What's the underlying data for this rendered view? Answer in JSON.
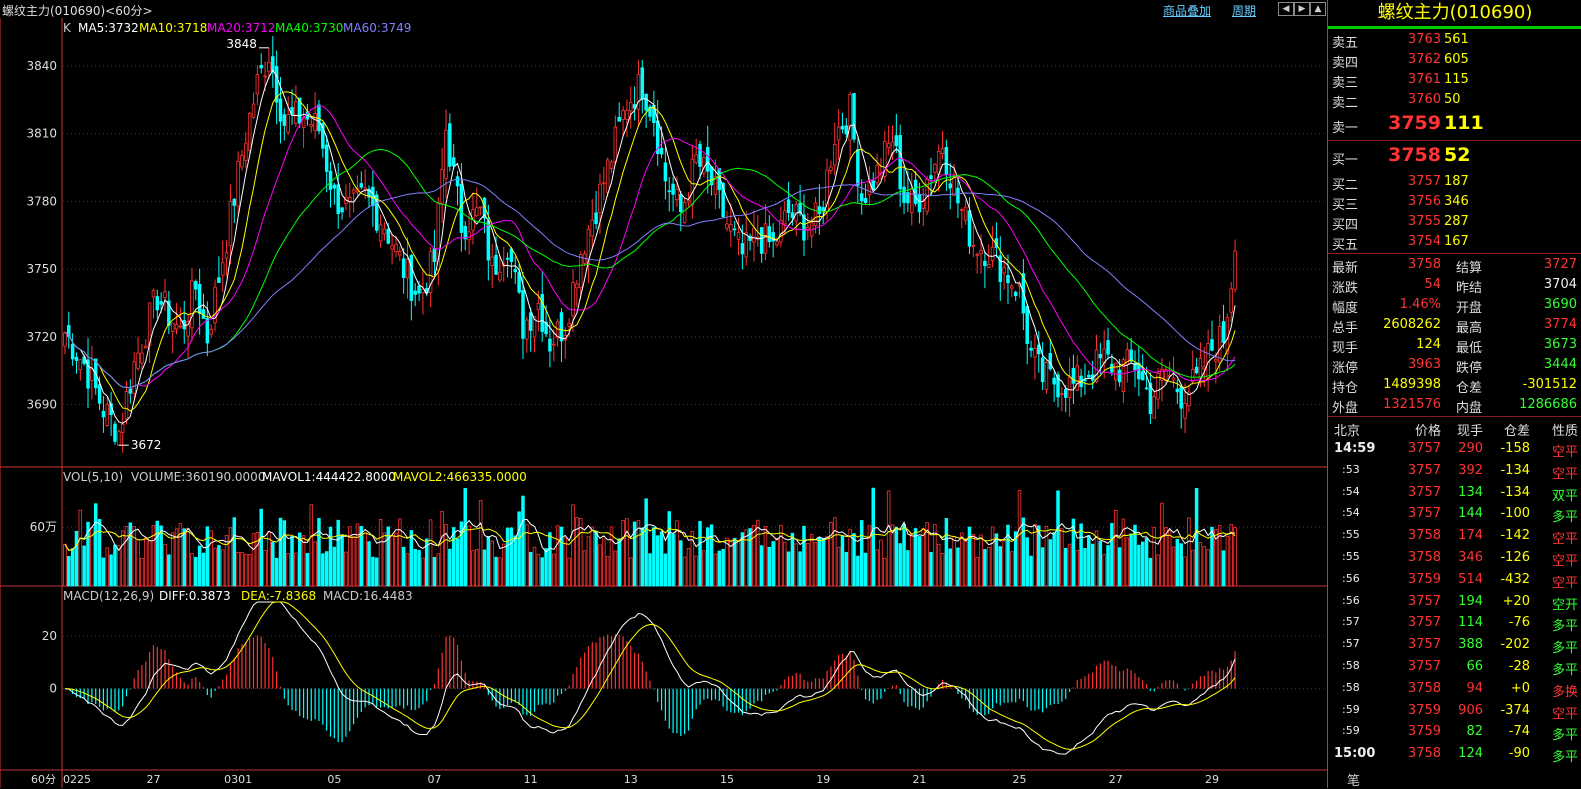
{
  "header": {
    "title": "螺纹主力(010690)<60分>",
    "overlay_link": "商品叠加",
    "cycle_link": "周期",
    "nav_icons": [
      "arrow-left-icon",
      "arrow-right-icon",
      "arrow-up-down-icon"
    ]
  },
  "legends": {
    "k_label": "K",
    "ma": [
      {
        "text": "MA5:3732",
        "color": "#ffffff"
      },
      {
        "text": "MA10:3718",
        "color": "#ffff00"
      },
      {
        "text": "MA20:3712",
        "color": "#ff00ff"
      },
      {
        "text": "MA40:3730",
        "color": "#00ff00"
      },
      {
        "text": "MA60:3749",
        "color": "#8080ff"
      }
    ],
    "vol": [
      {
        "text": "VOL(5,10)",
        "color": "#cccccc"
      },
      {
        "text": "VOLUME:360190.0000",
        "color": "#cccccc"
      },
      {
        "text": "MAVOL1:444422.8000",
        "color": "#ffffff"
      },
      {
        "text": "MAVOL2:466335.0000",
        "color": "#ffff00"
      }
    ],
    "macd": [
      {
        "text": "MACD(12,26,9)",
        "color": "#cccccc"
      },
      {
        "text": "DIFF:0.3873",
        "color": "#ffffff"
      },
      {
        "text": "DEA:-7.8368",
        "color": "#ffff00"
      },
      {
        "text": "MACD:16.4483",
        "color": "#cccccc"
      }
    ]
  },
  "chart_data": {
    "type": "candlestick",
    "price_axis": {
      "ticks": [
        3690,
        3720,
        3750,
        3780,
        3810,
        3840
      ],
      "range": [
        3665,
        3855
      ]
    },
    "volume_axis": {
      "ticks_label": "60万",
      "tick_value": 600000,
      "range": [
        0,
        1050000
      ]
    },
    "macd_axis": {
      "ticks": [
        0,
        20
      ],
      "range": [
        -31,
        33
      ]
    },
    "x_labels": [
      {
        "i": 0,
        "label": "0225"
      },
      {
        "i": 23,
        "label": "27"
      },
      {
        "i": 45,
        "label": "0301"
      },
      {
        "i": 70,
        "label": "05"
      },
      {
        "i": 96,
        "label": "07"
      },
      {
        "i": 121,
        "label": "11"
      },
      {
        "i": 147,
        "label": "13"
      },
      {
        "i": 172,
        "label": "15"
      },
      {
        "i": 197,
        "label": "19"
      },
      {
        "i": 222,
        "label": "21"
      },
      {
        "i": 248,
        "label": "25"
      },
      {
        "i": 273,
        "label": "27"
      },
      {
        "i": 298,
        "label": "29"
      }
    ],
    "annotations": [
      {
        "text": "3848",
        "price": 3848
      },
      {
        "text": "3672",
        "price": 3672
      }
    ],
    "anchors": [
      {
        "i": 0,
        "c": 3722
      },
      {
        "i": 5,
        "c": 3708
      },
      {
        "i": 10,
        "c": 3688
      },
      {
        "i": 14,
        "c": 3678
      },
      {
        "i": 18,
        "c": 3708
      },
      {
        "i": 24,
        "c": 3738
      },
      {
        "i": 30,
        "c": 3722
      },
      {
        "i": 34,
        "c": 3742
      },
      {
        "i": 37,
        "c": 3720
      },
      {
        "i": 42,
        "c": 3764
      },
      {
        "i": 47,
        "c": 3810
      },
      {
        "i": 50,
        "c": 3832
      },
      {
        "i": 53,
        "c": 3846
      },
      {
        "i": 57,
        "c": 3815
      },
      {
        "i": 62,
        "c": 3818
      },
      {
        "i": 66,
        "c": 3812
      },
      {
        "i": 70,
        "c": 3782
      },
      {
        "i": 74,
        "c": 3776
      },
      {
        "i": 78,
        "c": 3782
      },
      {
        "i": 83,
        "c": 3770
      },
      {
        "i": 88,
        "c": 3750
      },
      {
        "i": 92,
        "c": 3738
      },
      {
        "i": 96,
        "c": 3754
      },
      {
        "i": 99,
        "c": 3812
      },
      {
        "i": 103,
        "c": 3770
      },
      {
        "i": 108,
        "c": 3775
      },
      {
        "i": 111,
        "c": 3750
      },
      {
        "i": 115,
        "c": 3762
      },
      {
        "i": 119,
        "c": 3725
      },
      {
        "i": 123,
        "c": 3735
      },
      {
        "i": 126,
        "c": 3718
      },
      {
        "i": 130,
        "c": 3726
      },
      {
        "i": 134,
        "c": 3758
      },
      {
        "i": 138,
        "c": 3778
      },
      {
        "i": 142,
        "c": 3800
      },
      {
        "i": 146,
        "c": 3824
      },
      {
        "i": 150,
        "c": 3832
      },
      {
        "i": 153,
        "c": 3818
      },
      {
        "i": 156,
        "c": 3790
      },
      {
        "i": 160,
        "c": 3775
      },
      {
        "i": 164,
        "c": 3798
      },
      {
        "i": 168,
        "c": 3788
      },
      {
        "i": 172,
        "c": 3770
      },
      {
        "i": 176,
        "c": 3756
      },
      {
        "i": 180,
        "c": 3765
      },
      {
        "i": 184,
        "c": 3760
      },
      {
        "i": 188,
        "c": 3775
      },
      {
        "i": 192,
        "c": 3770
      },
      {
        "i": 196,
        "c": 3772
      },
      {
        "i": 200,
        "c": 3810
      },
      {
        "i": 204,
        "c": 3820
      },
      {
        "i": 207,
        "c": 3782
      },
      {
        "i": 211,
        "c": 3792
      },
      {
        "i": 215,
        "c": 3808
      },
      {
        "i": 218,
        "c": 3782
      },
      {
        "i": 221,
        "c": 3778
      },
      {
        "i": 224,
        "c": 3790
      },
      {
        "i": 228,
        "c": 3806
      },
      {
        "i": 232,
        "c": 3780
      },
      {
        "i": 236,
        "c": 3762
      },
      {
        "i": 240,
        "c": 3758
      },
      {
        "i": 244,
        "c": 3750
      },
      {
        "i": 248,
        "c": 3740
      },
      {
        "i": 251,
        "c": 3712
      },
      {
        "i": 254,
        "c": 3702
      },
      {
        "i": 258,
        "c": 3700
      },
      {
        "i": 262,
        "c": 3698
      },
      {
        "i": 266,
        "c": 3705
      },
      {
        "i": 270,
        "c": 3710
      },
      {
        "i": 274,
        "c": 3706
      },
      {
        "i": 278,
        "c": 3708
      },
      {
        "i": 282,
        "c": 3692
      },
      {
        "i": 286,
        "c": 3705
      },
      {
        "i": 290,
        "c": 3695
      },
      {
        "i": 294,
        "c": 3700
      },
      {
        "i": 298,
        "c": 3715
      },
      {
        "i": 301,
        "c": 3720
      },
      {
        "i": 304,
        "c": 3758
      }
    ],
    "n_bars": 305
  },
  "order_book": {
    "title": "螺纹主力(010690)",
    "asks": [
      {
        "label": "卖五",
        "price": "3763",
        "vol": "561"
      },
      {
        "label": "卖四",
        "price": "3762",
        "vol": "605"
      },
      {
        "label": "卖三",
        "price": "3761",
        "vol": "115"
      },
      {
        "label": "卖二",
        "price": "3760",
        "vol": "50"
      }
    ],
    "ask1": {
      "label": "卖一",
      "price": "3759",
      "vol": "111"
    },
    "bid1": {
      "label": "买一",
      "price": "3758",
      "vol": "52"
    },
    "bids": [
      {
        "label": "买二",
        "price": "3757",
        "vol": "187"
      },
      {
        "label": "买三",
        "price": "3756",
        "vol": "346"
      },
      {
        "label": "买四",
        "price": "3755",
        "vol": "287"
      },
      {
        "label": "买五",
        "price": "3754",
        "vol": "167"
      }
    ]
  },
  "stats": [
    {
      "l1": "最新",
      "v1": "3758",
      "c1": "red",
      "l2": "结算",
      "v2": "3727",
      "c2": "red"
    },
    {
      "l1": "涨跌",
      "v1": "54",
      "c1": "red",
      "l2": "昨结",
      "v2": "3704",
      "c2": "wht"
    },
    {
      "l1": "幅度",
      "v1": "1.46%",
      "c1": "red",
      "l2": "开盘",
      "v2": "3690",
      "c2": "green"
    },
    {
      "l1": "总手",
      "v1": "2608262",
      "c1": "yel",
      "l2": "最高",
      "v2": "3774",
      "c2": "red"
    },
    {
      "l1": "现手",
      "v1": "124",
      "c1": "yel",
      "l2": "最低",
      "v2": "3673",
      "c2": "green"
    },
    {
      "l1": "涨停",
      "v1": "3963",
      "c1": "red",
      "l2": "跌停",
      "v2": "3444",
      "c2": "green"
    },
    {
      "l1": "持仓",
      "v1": "1489398",
      "c1": "yel",
      "l2": "仓差",
      "v2": "-301512",
      "c2": "yel"
    },
    {
      "l1": "外盘",
      "v1": "1321576",
      "c1": "red",
      "l2": "内盘",
      "v2": "1286686",
      "c2": "green"
    }
  ],
  "ticks_header": {
    "time": "北京",
    "price": "价格",
    "vol": "现手",
    "oi": "仓差",
    "type": "性质"
  },
  "ticks": [
    {
      "time": "14:59",
      "price": "3757",
      "vol": "290",
      "oi": "-158",
      "type": "空平",
      "tc": "red",
      "bold": true
    },
    {
      "time": ":53",
      "price": "3757",
      "vol": "392",
      "oi": "-134",
      "type": "空平",
      "tc": "red"
    },
    {
      "time": ":54",
      "price": "3757",
      "vol": "134",
      "oi": "-134",
      "type": "双平",
      "tc": "green"
    },
    {
      "time": ":54",
      "price": "3757",
      "vol": "144",
      "oi": "-100",
      "type": "多平",
      "tc": "green"
    },
    {
      "time": ":55",
      "price": "3758",
      "vol": "174",
      "oi": "-142",
      "type": "空平",
      "tc": "red"
    },
    {
      "time": ":55",
      "price": "3758",
      "vol": "346",
      "oi": "-126",
      "type": "空平",
      "tc": "red"
    },
    {
      "time": ":56",
      "price": "3759",
      "vol": "514",
      "oi": "-432",
      "type": "空平",
      "tc": "red"
    },
    {
      "time": ":56",
      "price": "3757",
      "vol": "194",
      "oi": "+20",
      "type": "空开",
      "tc": "green"
    },
    {
      "time": ":57",
      "price": "3757",
      "vol": "114",
      "oi": "-76",
      "type": "多平",
      "tc": "green"
    },
    {
      "time": ":57",
      "price": "3757",
      "vol": "388",
      "oi": "-202",
      "type": "多平",
      "tc": "green"
    },
    {
      "time": ":58",
      "price": "3757",
      "vol": "66",
      "oi": "-28",
      "type": "多平",
      "tc": "green"
    },
    {
      "time": ":58",
      "price": "3758",
      "vol": "94",
      "oi": "+0",
      "type": "多换",
      "tc": "red"
    },
    {
      "time": ":59",
      "price": "3759",
      "vol": "906",
      "oi": "-374",
      "type": "空平",
      "tc": "red"
    },
    {
      "time": ":59",
      "price": "3759",
      "vol": "82",
      "oi": "-74",
      "type": "多平",
      "tc": "green"
    },
    {
      "time": "15:00",
      "price": "3758",
      "vol": "124",
      "oi": "-90",
      "type": "多平",
      "tc": "green",
      "bold": true
    }
  ],
  "footer": {
    "period_label": "60分",
    "tab_label": "笔"
  }
}
